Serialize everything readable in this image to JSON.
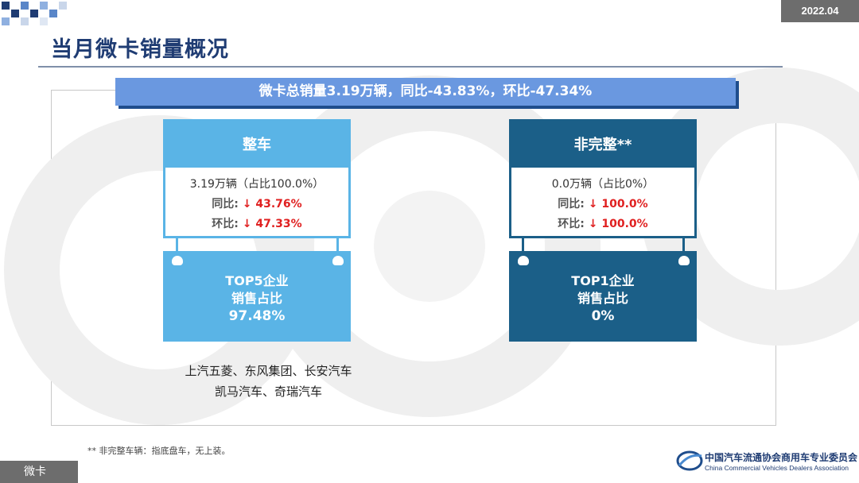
{
  "header": {
    "date": "2022.04",
    "title": "当月微卡销量概况"
  },
  "summary": {
    "text": "微卡总销量3.19万辆，同比-43.83%，环比-47.34%"
  },
  "cards": [
    {
      "title": "整车",
      "share": "3.19万辆（占比100.0%）",
      "yoy_label": "同比:",
      "yoy_value": "↓ 43.76%",
      "mom_label": "环比:",
      "mom_value": "↓ 47.33%",
      "top_line1": "TOP5企业",
      "top_line2": "销售占比",
      "top_value": "97.48%",
      "companies_line1": "上汽五菱、东风集团、长安汽车",
      "companies_line2": "凯马汽车、奇瑞汽车"
    },
    {
      "title": "非完整**",
      "share": "0.0万辆（占比0%）",
      "yoy_label": "同比:",
      "yoy_value": "↓ 100.0%",
      "mom_label": "环比:",
      "mom_value": "↓ 100.0%",
      "top_line1": "TOP1企业",
      "top_line2": "销售占比",
      "top_value": "0%"
    }
  ],
  "footnote": "** 非完整车辆：指底盘车，无上装。",
  "section_tag": "微卡",
  "organization": {
    "name_cn": "中国汽车流通协会商用车专业委员会",
    "name_en": "China Commercial Vehicles Dealers Association"
  },
  "colors": {
    "title": "#1f3c73",
    "banner": "#6a98e0",
    "card_light": "#5ab4e6",
    "card_dark": "#1b5f88",
    "down_arrow": "#e02020"
  }
}
